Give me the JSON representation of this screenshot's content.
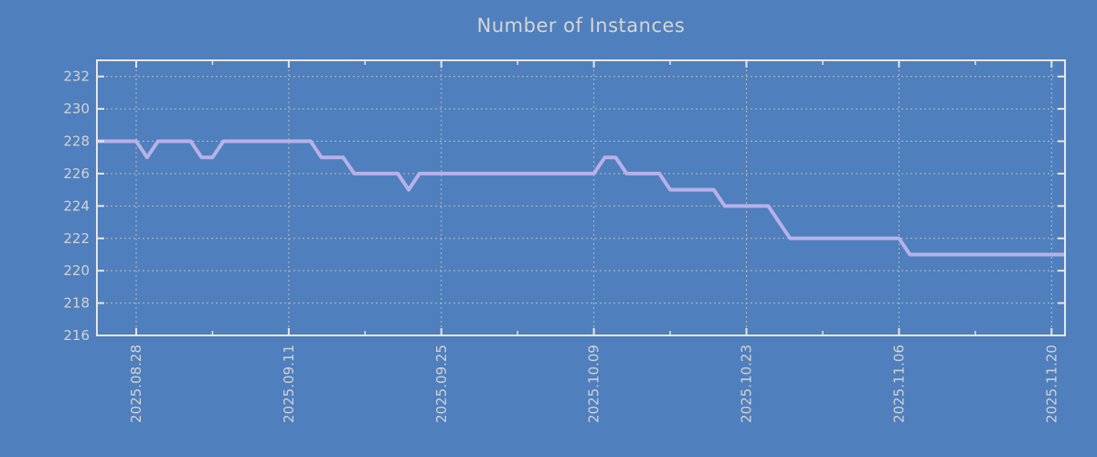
{
  "chart_data": {
    "type": "line",
    "title": "Number of Instances",
    "xlabel": "",
    "ylabel": "",
    "grid": "dashed",
    "legend": "none",
    "y_ticks": [
      216,
      218,
      220,
      222,
      224,
      226,
      228,
      230,
      232
    ],
    "y_range": [
      216,
      233
    ],
    "x_tick_labels": [
      "2025.08.28",
      "2025.09.11",
      "2025.09.25",
      "2025.10.09",
      "2025.10.23",
      "2025.11.06",
      "2025.11.20"
    ],
    "x_tick_interval_days": 14,
    "x_minor_tick_interval_days": 7,
    "series": [
      {
        "name": "instances",
        "start_date": "2025.08.24",
        "step_days": 1,
        "values": [
          228,
          228,
          228,
          228,
          228,
          227,
          228,
          228,
          228,
          228,
          227,
          227,
          228,
          228,
          228,
          228,
          228,
          228,
          228,
          228,
          228,
          227,
          227,
          227,
          226,
          226,
          226,
          226,
          226,
          225,
          226,
          226,
          226,
          226,
          226,
          226,
          226,
          226,
          226,
          226,
          226,
          226,
          226,
          226,
          226,
          226,
          226,
          227,
          227,
          226,
          226,
          226,
          226,
          225,
          225,
          225,
          225,
          225,
          224,
          224,
          224,
          224,
          224,
          223,
          222,
          222,
          222,
          222,
          222,
          222,
          222,
          222,
          222,
          222,
          222,
          221,
          221,
          221,
          221,
          221,
          221,
          221,
          221,
          221,
          221,
          221,
          221,
          221,
          221,
          221
        ]
      }
    ],
    "colors": {
      "background": "#4f7fbd",
      "line": "#b6b1e8",
      "grid": "#c6c2ba",
      "axis": "#e8e6e2",
      "tick_text": "#d2d2d2",
      "title_text": "#d5d5d5"
    }
  }
}
